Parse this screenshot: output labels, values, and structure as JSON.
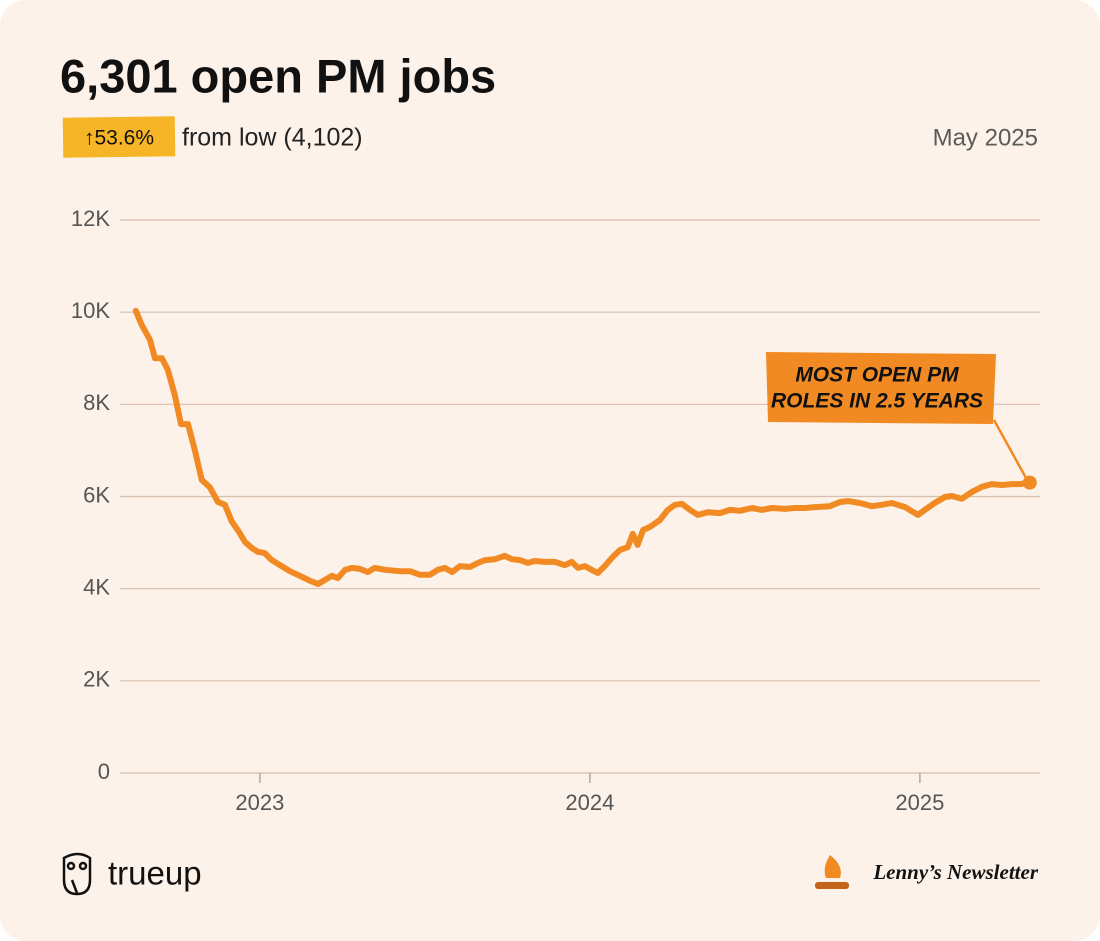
{
  "chart_data": {
    "type": "line",
    "title": "6,301 open PM jobs",
    "change_badge": "↑53.6%",
    "subtitle": "from low (4,102)",
    "date": "May 2025",
    "annotation": [
      "MOST OPEN PM",
      "ROLES IN 2.5 YEARS"
    ],
    "logos": [
      "trueup",
      "Lenny’s Newsletter"
    ],
    "color": "#f28a24",
    "grid": true,
    "xlim": [
      2022.576,
      2025.364
    ],
    "xticks": [
      2023,
      2024,
      2025
    ],
    "ylim": [
      0,
      12000
    ],
    "yticks": [
      0,
      {
        "value": 2000,
        "label": "2K"
      },
      {
        "value": 4000,
        "label": "4K"
      },
      {
        "value": 6000,
        "label": "6K"
      },
      {
        "value": 8000,
        "label": "8K"
      },
      {
        "value": 10000,
        "label": "10K"
      },
      {
        "value": 12000,
        "label": "12K"
      }
    ],
    "x": [
      2022.624,
      2022.642,
      2022.667,
      2022.682,
      2022.703,
      2022.721,
      2022.742,
      2022.761,
      2022.782,
      2022.803,
      2022.824,
      2022.848,
      2022.873,
      2022.894,
      2022.915,
      2022.933,
      2022.955,
      2022.976,
      2022.994,
      2023.015,
      2023.036,
      2023.061,
      2023.091,
      2023.121,
      2023.152,
      2023.176,
      2023.197,
      2023.218,
      2023.236,
      2023.258,
      2023.279,
      2023.303,
      2023.327,
      2023.348,
      2023.379,
      2023.424,
      2023.455,
      2023.485,
      2023.515,
      2023.539,
      2023.561,
      2023.582,
      2023.606,
      2023.636,
      2023.661,
      2023.682,
      2023.712,
      2023.742,
      2023.764,
      2023.788,
      2023.812,
      2023.833,
      2023.864,
      2023.894,
      2023.924,
      2023.945,
      2023.964,
      2023.985,
      2024.0,
      2024.024,
      2024.045,
      2024.067,
      2024.091,
      2024.115,
      2024.13,
      2024.145,
      2024.161,
      2024.182,
      2024.212,
      2024.236,
      2024.258,
      2024.279,
      2024.303,
      2024.327,
      2024.358,
      2024.394,
      2024.424,
      2024.455,
      2024.491,
      2024.521,
      2024.552,
      2024.591,
      2024.621,
      2024.652,
      2024.682,
      2024.727,
      2024.758,
      2024.782,
      2024.818,
      2024.855,
      2024.885,
      2024.915,
      2024.955,
      2024.994,
      2025.015,
      2025.045,
      2025.076,
      2025.097,
      2025.127,
      2025.158,
      2025.188,
      2025.218,
      2025.248,
      2025.279,
      2025.303,
      2025.333
    ],
    "values": [
      10030,
      9720,
      9400,
      9000,
      9000,
      8750,
      8200,
      7570,
      7570,
      7000,
      6360,
      6200,
      5880,
      5820,
      5450,
      5270,
      5010,
      4880,
      4800,
      4770,
      4620,
      4510,
      4380,
      4280,
      4170,
      4102,
      4190,
      4280,
      4230,
      4410,
      4450,
      4430,
      4360,
      4450,
      4410,
      4380,
      4380,
      4300,
      4300,
      4410,
      4450,
      4360,
      4490,
      4470,
      4560,
      4620,
      4640,
      4710,
      4640,
      4620,
      4560,
      4600,
      4580,
      4580,
      4510,
      4580,
      4450,
      4490,
      4430,
      4340,
      4490,
      4670,
      4840,
      4900,
      5190,
      4950,
      5270,
      5340,
      5490,
      5710,
      5820,
      5840,
      5710,
      5600,
      5660,
      5640,
      5710,
      5690,
      5750,
      5710,
      5750,
      5730,
      5750,
      5750,
      5770,
      5790,
      5880,
      5900,
      5860,
      5790,
      5820,
      5860,
      5770,
      5600,
      5710,
      5860,
      5990,
      6010,
      5950,
      6100,
      6210,
      6270,
      6250,
      6270,
      6270,
      6301
    ]
  }
}
